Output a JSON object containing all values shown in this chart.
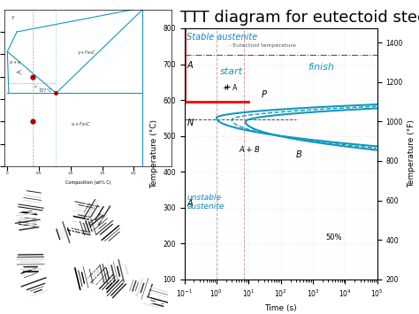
{
  "title": "TTT diagram for eutectoid steel",
  "title_fontsize": 13,
  "xlabel": "Time (s)",
  "ylabel_left": "Temperature (°C)",
  "ylabel_right": "Temperature (°F)",
  "background_color": "#ffffff",
  "ttt_color": "#1199bb",
  "red_color": "#cc0000",
  "eutectoid_temp_C": 727,
  "xlim_log": [
    -1,
    5
  ],
  "ylim_C": [
    100,
    800
  ],
  "ylim_F_lo": 212,
  "ylim_F_hi": 1472,
  "stable_austenite_text": "Stable austenite",
  "eutectoid_label": "- Eutectoid temperature",
  "start_label": "start",
  "finish_label": "finish",
  "unstable_label": "unstable\naustenite",
  "label_A_top": "A",
  "label_A_bot": "A",
  "label_N": "N",
  "label_P": "P",
  "label_ApB": "A + B",
  "label_B": "B",
  "label_50": "50%",
  "nose_start_T": 550,
  "nose_start_t": 1.0,
  "nose_finish_T": 540,
  "nose_finish_t": 8.0,
  "nose_50_T": 545,
  "nose_50_t": 3.5
}
